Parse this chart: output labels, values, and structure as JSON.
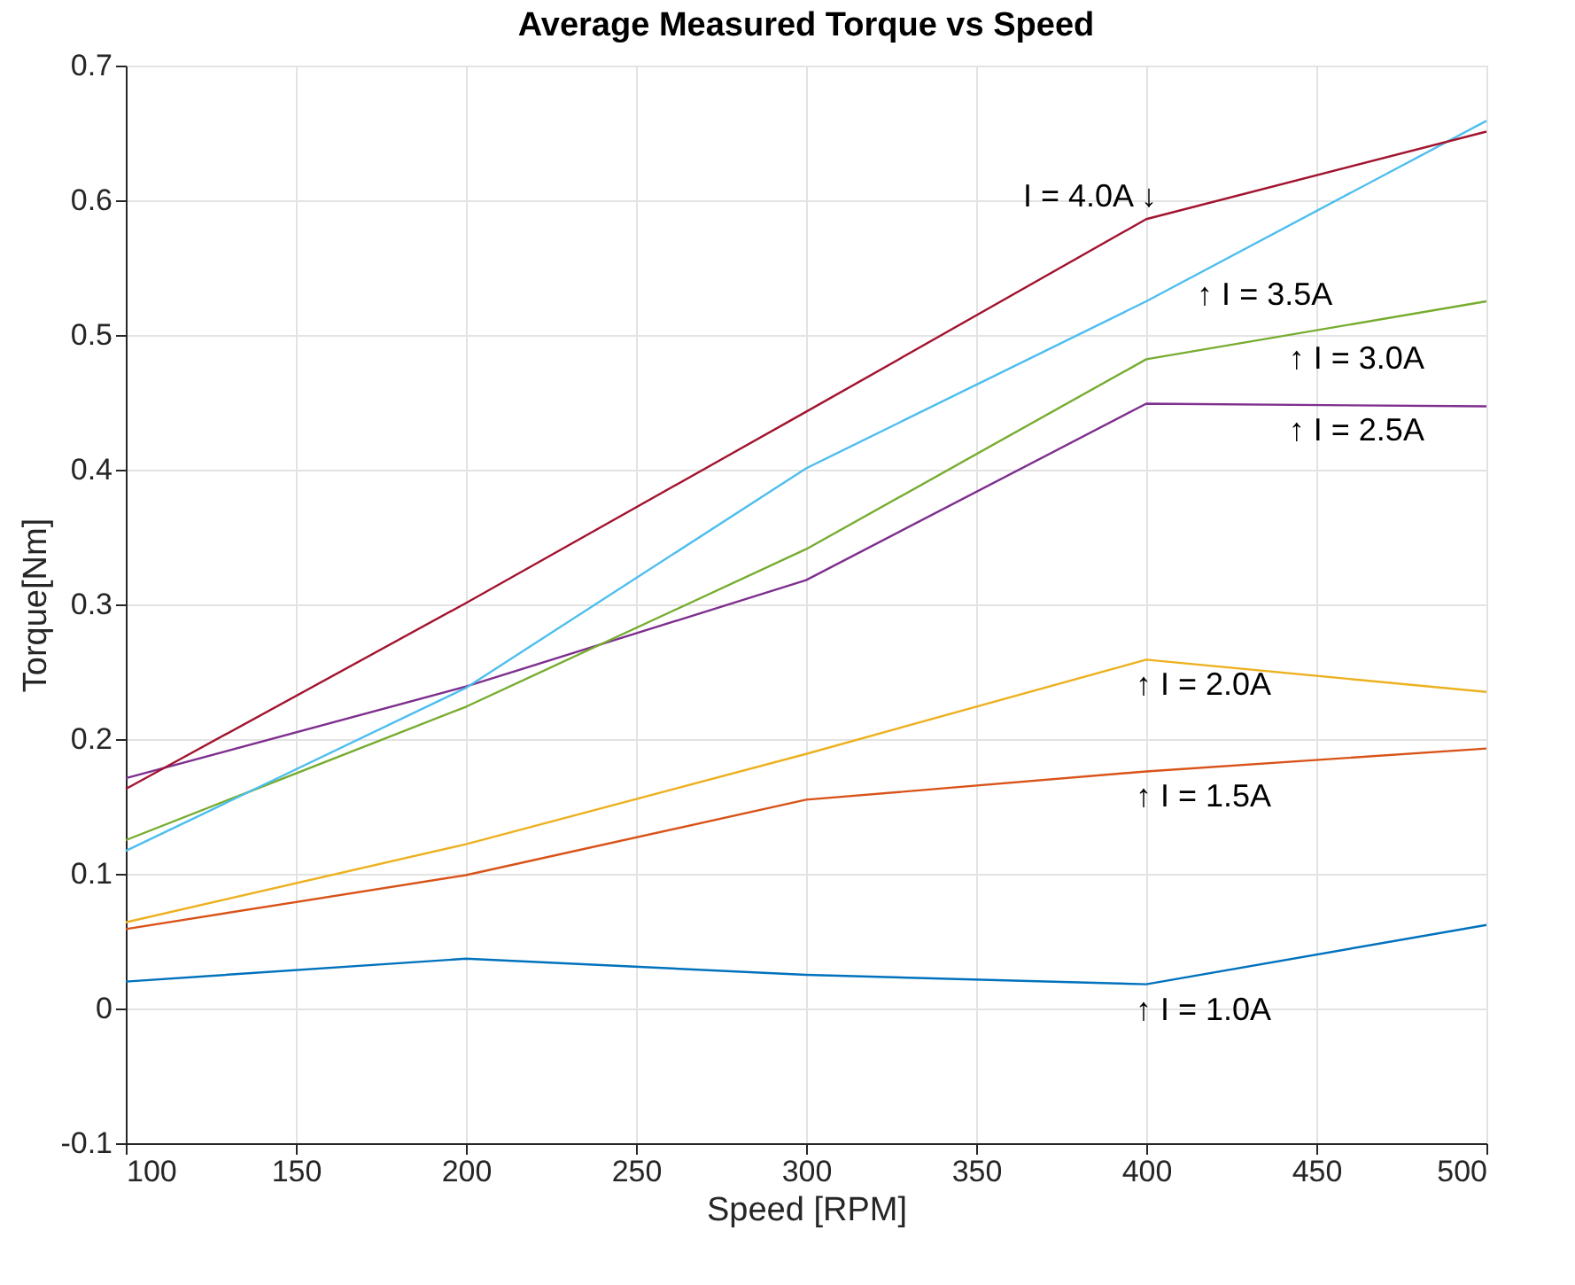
{
  "chart_data": {
    "type": "line",
    "title": "Average Measured Torque vs Speed",
    "xlabel": "Speed [RPM]",
    "ylabel": "Torque[Nm]",
    "x": [
      100,
      200,
      300,
      400,
      500
    ],
    "series": [
      {
        "color": "#0072bd",
        "values": [
          0.02,
          0.037,
          0.025,
          0.018,
          0.062
        ]
      },
      {
        "color": "#d95319",
        "values": [
          0.059,
          0.099,
          0.155,
          0.176,
          0.193
        ]
      },
      {
        "color": "#edb120",
        "values": [
          0.064,
          0.122,
          0.189,
          0.259,
          0.235
        ]
      },
      {
        "color": "#7e2f8e",
        "values": [
          0.171,
          0.239,
          0.318,
          0.449,
          0.447
        ]
      },
      {
        "color": "#77ac30",
        "values": [
          0.125,
          0.224,
          0.341,
          0.482,
          0.525
        ]
      },
      {
        "color": "#4dbeee",
        "values": [
          0.117,
          0.238,
          0.401,
          0.525,
          0.659
        ]
      },
      {
        "color": "#a2142f",
        "values": [
          0.163,
          0.301,
          0.443,
          0.586,
          0.651
        ]
      }
    ],
    "annotations": [
      {
        "text": "↑ I = 1.0A",
        "x": 400,
        "y": 0.018
      },
      {
        "text": "↑ I = 1.5A",
        "x": 400,
        "y": 0.176
      },
      {
        "text": "↑ I = 2.0A",
        "x": 400,
        "y": 0.259
      },
      {
        "text": "↑ I = 2.5A",
        "x": 445,
        "y": 0.448
      },
      {
        "text": "↑ I = 3.0A",
        "x": 445,
        "y": 0.501
      },
      {
        "text": "↑ I = 3.5A",
        "x": 418,
        "y": 0.549
      },
      {
        "text": "I = 4.0A ↓",
        "x": 400,
        "y": 0.586
      }
    ],
    "xlim": [
      100,
      500
    ],
    "xticks": [
      100,
      150,
      200,
      250,
      300,
      350,
      400,
      450,
      500
    ],
    "ylim": [
      -0.1,
      0.7
    ],
    "yticks": [
      -0.1,
      0,
      0.1,
      0.2,
      0.3,
      0.4,
      0.5,
      0.6,
      0.7
    ],
    "grid": true,
    "legend": false,
    "marker": "none",
    "line_style": "solid"
  }
}
